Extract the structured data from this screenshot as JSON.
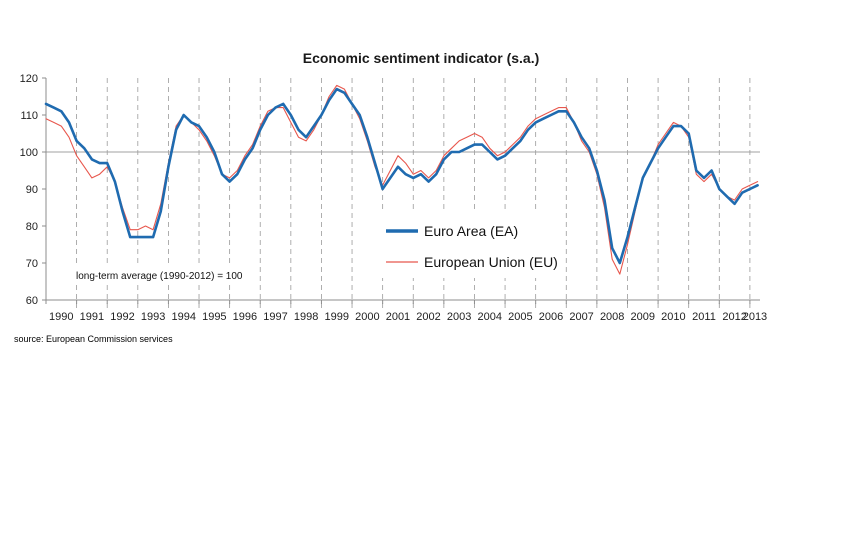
{
  "chart_data": {
    "type": "line",
    "title": "Economic sentiment indicator (s.a.)",
    "source": "source: European Commission services",
    "annotation": "long-term average (1990-2012) = 100",
    "ylim": [
      60,
      120
    ],
    "yticks": [
      60,
      70,
      80,
      90,
      100,
      110,
      120
    ],
    "reference_line": 100,
    "x_start": 1990,
    "x_end": 2013.33,
    "categories": [
      "1990",
      "1991",
      "1992",
      "1993",
      "1994",
      "1995",
      "1996",
      "1997",
      "1998",
      "1999",
      "2000",
      "2001",
      "2002",
      "2003",
      "2004",
      "2005",
      "2006",
      "2007",
      "2008",
      "2009",
      "2010",
      "2011",
      "2012",
      "2013"
    ],
    "legend": {
      "position": "center-right"
    },
    "colors": {
      "ea": "#1f6bb0",
      "eu": "#e8574d",
      "grid": "#9a9a9a",
      "axis": "#8c8c8c"
    },
    "series": [
      {
        "name": "Euro Area (EA)",
        "key": "ea",
        "x": [
          1990.0,
          1990.25,
          1990.5,
          1990.75,
          1991.0,
          1991.25,
          1991.5,
          1991.75,
          1992.0,
          1992.25,
          1992.5,
          1992.75,
          1993.0,
          1993.25,
          1993.5,
          1993.75,
          1994.0,
          1994.25,
          1994.5,
          1994.75,
          1995.0,
          1995.25,
          1995.5,
          1995.75,
          1996.0,
          1996.25,
          1996.5,
          1996.75,
          1997.0,
          1997.25,
          1997.5,
          1997.75,
          1998.0,
          1998.25,
          1998.5,
          1998.75,
          1999.0,
          1999.25,
          1999.5,
          1999.75,
          2000.0,
          2000.25,
          2000.5,
          2000.75,
          2001.0,
          2001.25,
          2001.5,
          2001.75,
          2002.0,
          2002.25,
          2002.5,
          2002.75,
          2003.0,
          2003.25,
          2003.5,
          2003.75,
          2004.0,
          2004.25,
          2004.5,
          2004.75,
          2005.0,
          2005.25,
          2005.5,
          2005.75,
          2006.0,
          2006.25,
          2006.5,
          2006.75,
          2007.0,
          2007.25,
          2007.5,
          2007.75,
          2008.0,
          2008.25,
          2008.5,
          2008.75,
          2009.0,
          2009.25,
          2009.5,
          2009.75,
          2010.0,
          2010.25,
          2010.5,
          2010.75,
          2011.0,
          2011.25,
          2011.5,
          2011.75,
          2012.0,
          2012.25,
          2012.5,
          2012.75,
          2013.0,
          2013.25
        ],
        "values": [
          113,
          112,
          111,
          108,
          103,
          101,
          98,
          97,
          97,
          92,
          84,
          77,
          77,
          77,
          77,
          84,
          96,
          106,
          110,
          108,
          107,
          104,
          100,
          94,
          92,
          94,
          98,
          101,
          106,
          110,
          112,
          113,
          110,
          106,
          104,
          107,
          110,
          114,
          117,
          116,
          113,
          110,
          104,
          97,
          90,
          93,
          96,
          94,
          93,
          94,
          92,
          94,
          98,
          100,
          100,
          101,
          102,
          102,
          100,
          98,
          99,
          101,
          103,
          106,
          108,
          109,
          110,
          111,
          111,
          108,
          104,
          101,
          95,
          87,
          74,
          70,
          77,
          85,
          93,
          97,
          101,
          104,
          107,
          107,
          105,
          95,
          93,
          95,
          90,
          88,
          86,
          89,
          90,
          91
        ]
      },
      {
        "name": "European Union (EU)",
        "key": "eu",
        "x": [
          1990.0,
          1990.25,
          1990.5,
          1990.75,
          1991.0,
          1991.25,
          1991.5,
          1991.75,
          1992.0,
          1992.25,
          1992.5,
          1992.75,
          1993.0,
          1993.25,
          1993.5,
          1993.75,
          1994.0,
          1994.25,
          1994.5,
          1994.75,
          1995.0,
          1995.25,
          1995.5,
          1995.75,
          1996.0,
          1996.25,
          1996.5,
          1996.75,
          1997.0,
          1997.25,
          1997.5,
          1997.75,
          1998.0,
          1998.25,
          1998.5,
          1998.75,
          1999.0,
          1999.25,
          1999.5,
          1999.75,
          2000.0,
          2000.25,
          2000.5,
          2000.75,
          2001.0,
          2001.25,
          2001.5,
          2001.75,
          2002.0,
          2002.25,
          2002.5,
          2002.75,
          2003.0,
          2003.25,
          2003.5,
          2003.75,
          2004.0,
          2004.25,
          2004.5,
          2004.75,
          2005.0,
          2005.25,
          2005.5,
          2005.75,
          2006.0,
          2006.25,
          2006.5,
          2006.75,
          2007.0,
          2007.25,
          2007.5,
          2007.75,
          2008.0,
          2008.25,
          2008.5,
          2008.75,
          2009.0,
          2009.25,
          2009.5,
          2009.75,
          2010.0,
          2010.25,
          2010.5,
          2010.75,
          2011.0,
          2011.25,
          2011.5,
          2011.75,
          2012.0,
          2012.25,
          2012.5,
          2012.75,
          2013.0,
          2013.25
        ],
        "values": [
          109,
          108,
          107,
          104,
          99,
          96,
          93,
          94,
          96,
          92,
          85,
          79,
          79,
          80,
          79,
          86,
          97,
          107,
          110,
          108,
          106,
          103,
          99,
          94,
          93,
          95,
          99,
          102,
          107,
          111,
          112,
          112,
          108,
          104,
          103,
          106,
          110,
          115,
          118,
          117,
          113,
          109,
          103,
          96,
          91,
          95,
          99,
          97,
          94,
          95,
          93,
          95,
          99,
          101,
          103,
          104,
          105,
          104,
          101,
          99,
          100,
          102,
          104,
          107,
          109,
          110,
          111,
          112,
          112,
          108,
          103,
          100,
          94,
          85,
          71,
          67,
          75,
          84,
          93,
          97,
          102,
          105,
          108,
          107,
          104,
          94,
          92,
          94,
          90,
          88,
          87,
          90,
          91,
          92
        ]
      }
    ]
  }
}
